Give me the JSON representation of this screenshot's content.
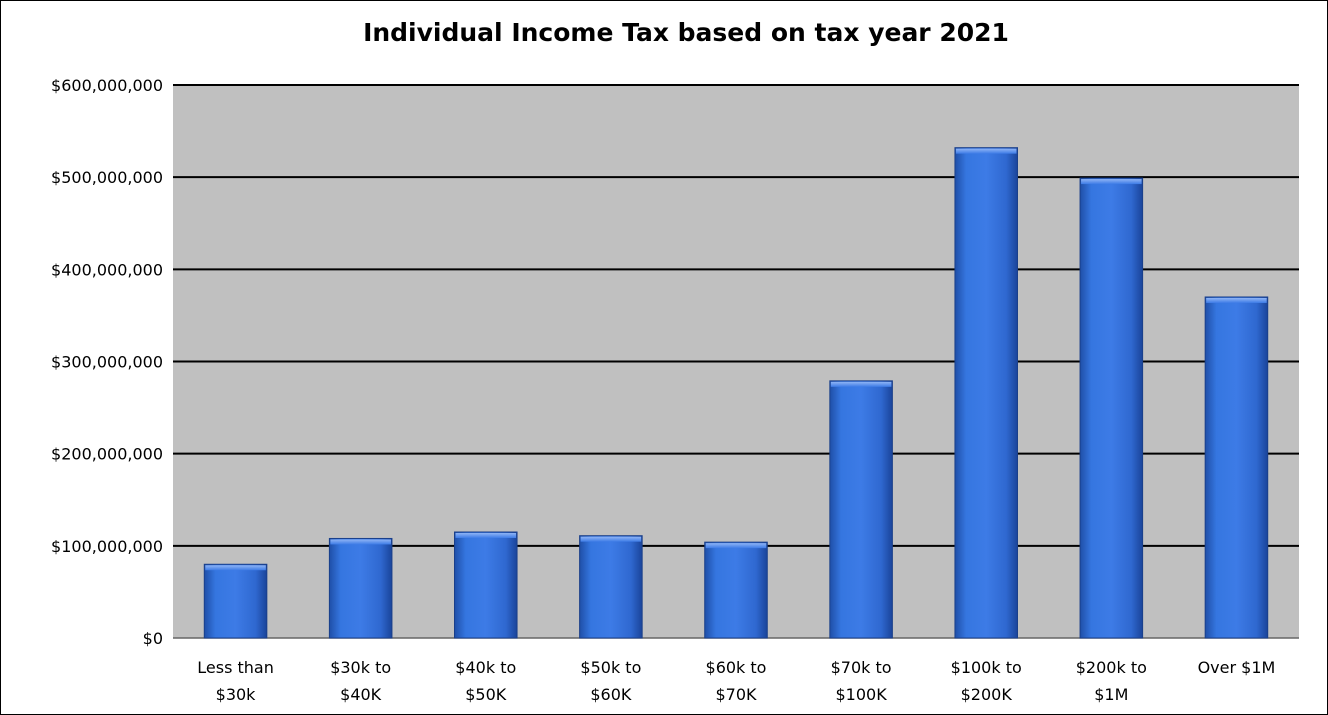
{
  "chart_data": {
    "type": "bar",
    "title": "Individual Income Tax based on tax year 2021",
    "xlabel": "",
    "ylabel": "",
    "categories": [
      [
        "Less than",
        "$30k"
      ],
      [
        "$30k to",
        "$40K"
      ],
      [
        "$40k to",
        "$50K"
      ],
      [
        "$50k to",
        "$60K"
      ],
      [
        "$60k to",
        "$70K"
      ],
      [
        "$70k to",
        "$100K"
      ],
      [
        "$100k to",
        "$200K"
      ],
      [
        "$200k to",
        "$1M"
      ],
      [
        "Over $1M"
      ]
    ],
    "values": [
      80000000,
      108000000,
      115000000,
      111000000,
      104000000,
      279000000,
      532000000,
      499000000,
      370000000
    ],
    "ylim": [
      0,
      600000000
    ],
    "yticks": [
      0,
      100000000,
      200000000,
      300000000,
      400000000,
      500000000,
      600000000
    ],
    "ytick_labels": [
      "$0",
      "$100,000,000",
      "$200,000,000",
      "$300,000,000",
      "$400,000,000",
      "$500,000,000",
      "$600,000,000"
    ],
    "grid": true,
    "legend": "none",
    "colors": {
      "plot_background": "#c0c0c0",
      "bar_light": "#3d7be6",
      "bar_mid": "#2f68d0",
      "bar_dark": "#1f4fa8",
      "gridline": "#000000"
    }
  }
}
